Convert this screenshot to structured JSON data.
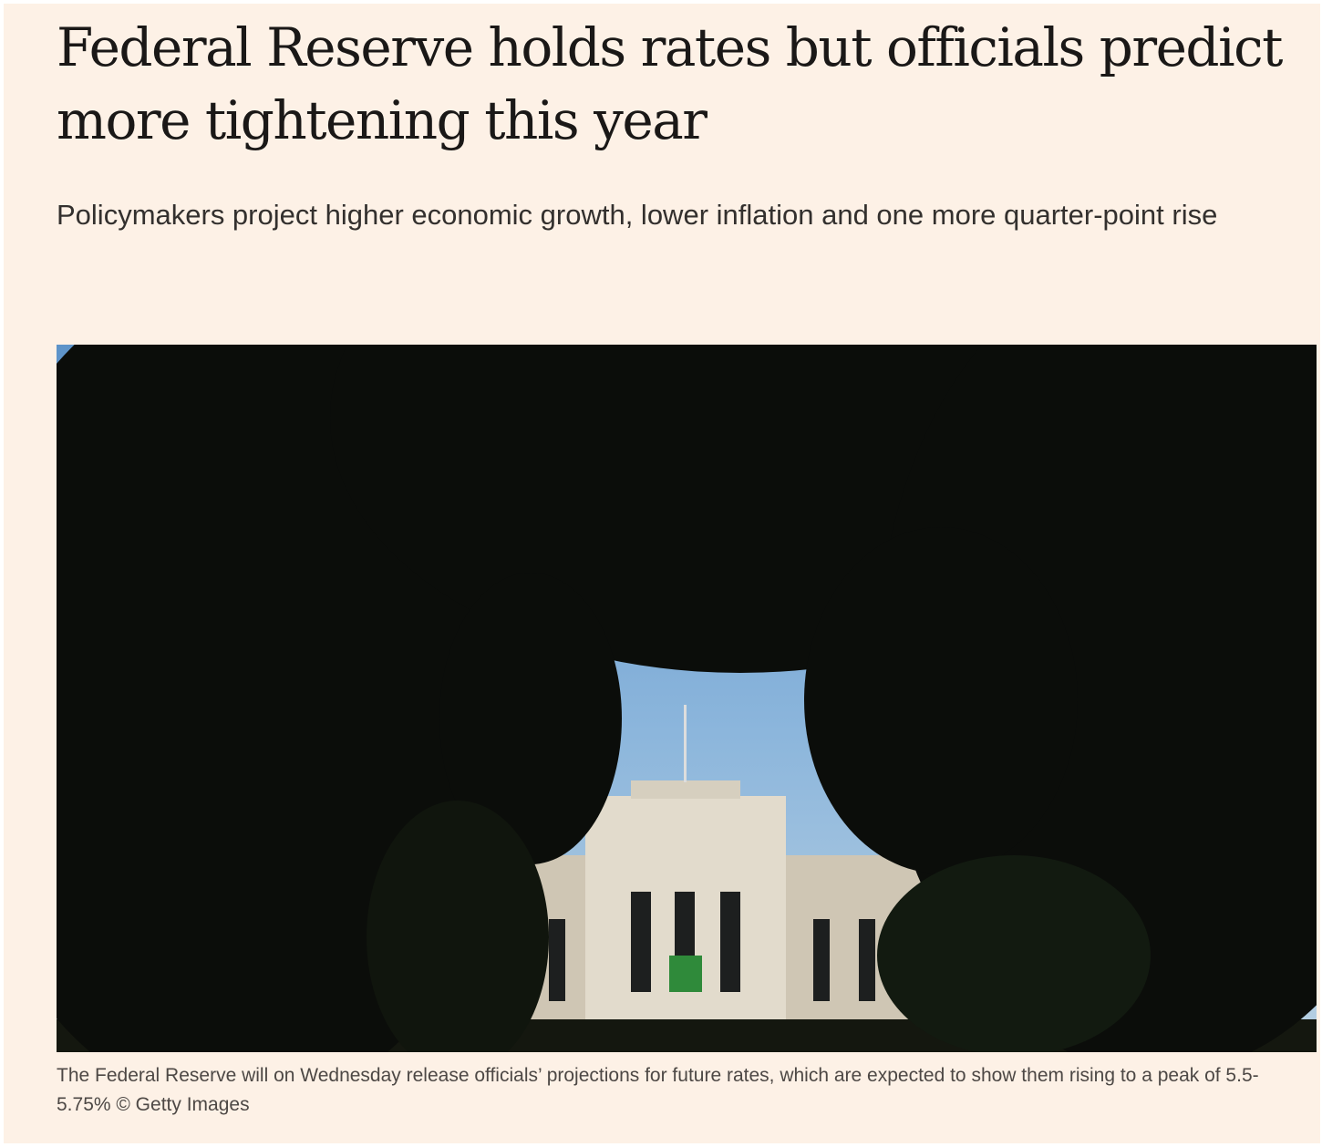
{
  "article": {
    "headline": "Federal Reserve holds rates but officials predict more tightening this year",
    "standfirst": "Policymakers project higher economic growth, lower inflation and one more quarter-point rise",
    "image": {
      "caption": "The Federal Reserve will on Wednesday release officials’ projections for future rates, which are expected to show them rising to a peak of 5.5-5.75% © Getty Images"
    }
  }
}
